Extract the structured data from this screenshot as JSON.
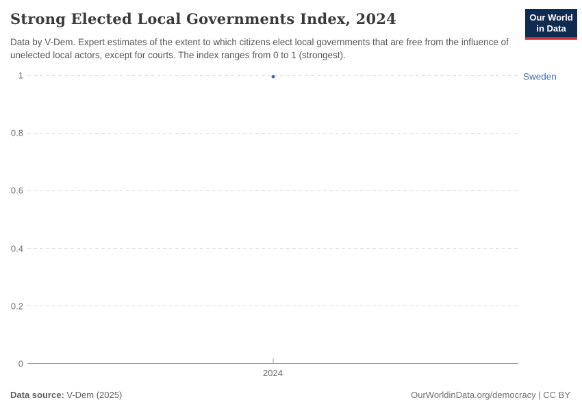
{
  "header": {
    "title": "Strong Elected Local Governments Index, 2024",
    "subtitle": "Data by V-Dem. Expert estimates of the extent to which citizens elect local governments that are free from the influence of unelected local actors, except for courts. The index ranges from 0 to 1 (strongest).",
    "logo": {
      "line1": "Our World",
      "line2": "in Data",
      "background_color": "#102b50",
      "stripe_color": "#cf2e39",
      "text_color": "#ffffff"
    }
  },
  "chart_data": {
    "type": "scatter",
    "title": "Strong Elected Local Governments Index, 2024",
    "xlabel": "",
    "ylabel": "",
    "ylim": [
      0,
      1
    ],
    "grid": "horizontal dashed",
    "legend_position": "right entity label",
    "yticks": [
      {
        "value": 0,
        "label": "0"
      },
      {
        "value": 0.2,
        "label": "0.2"
      },
      {
        "value": 0.4,
        "label": "0.4"
      },
      {
        "value": 0.6,
        "label": "0.6"
      },
      {
        "value": 0.8,
        "label": "0.8"
      },
      {
        "value": 1,
        "label": "1"
      }
    ],
    "xticks": [
      {
        "label": "2024",
        "frac": 0.5
      }
    ],
    "series": [
      {
        "name": "Sweden",
        "color": "#3c69b0",
        "points": [
          {
            "x": 2024,
            "x_frac": 0.5,
            "y": 1
          }
        ]
      }
    ]
  },
  "footer": {
    "source_label": "Data source:",
    "source_value": " V-Dem (2025)",
    "rights": "OurWorldinData.org/democracy | CC BY"
  }
}
